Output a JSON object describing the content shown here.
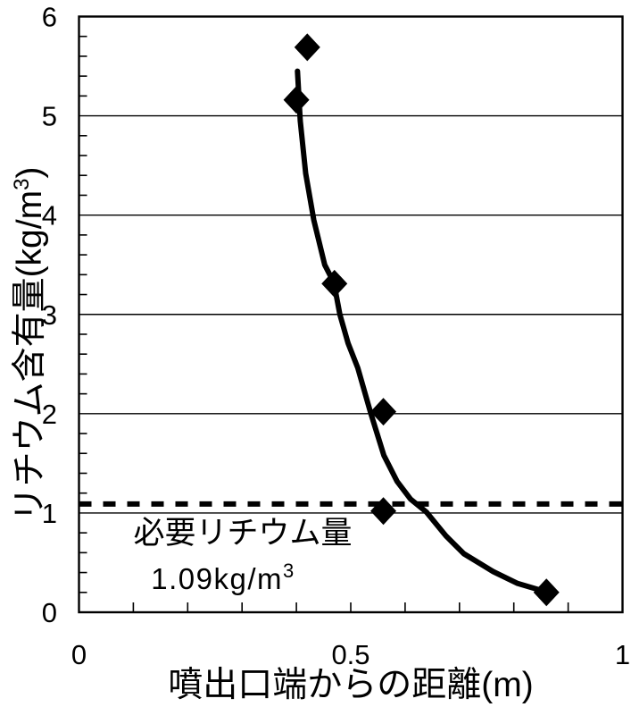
{
  "colors": {
    "foreground": "#000000",
    "background": "#ffffff"
  },
  "chart_data": {
    "type": "scatter",
    "xlabel": "噴出口端からの距離(m)",
    "ylabel": "リチウム含有量(kg/m3)",
    "ylabel_parts": {
      "main": "リチウム含有量(kg/m",
      "sup": "3",
      "close": ")"
    },
    "xlim": [
      0,
      1
    ],
    "ylim": [
      0,
      6
    ],
    "x_tick_values": [
      0,
      0.5,
      1
    ],
    "x_tick_labels": [
      "0",
      "0.5",
      "1"
    ],
    "x_minor_step": 0.1,
    "y_tick_values": [
      0,
      1,
      2,
      3,
      4,
      5,
      6
    ],
    "y_tick_labels": [
      "0",
      "1",
      "2",
      "3",
      "4",
      "5",
      "6"
    ],
    "y_minor_step": 0.2,
    "grid": "horizontal-major-only",
    "legend": "none",
    "series": [
      {
        "name": "lithium-content-points",
        "type": "scatter",
        "marker": "diamond",
        "color": "#000000",
        "points": [
          [
            0.42,
            5.69
          ],
          [
            0.4,
            5.16
          ],
          [
            0.47,
            3.31
          ],
          [
            0.56,
            2.02
          ],
          [
            0.56,
            1.02
          ],
          [
            0.86,
            0.2
          ]
        ]
      },
      {
        "name": "fit-curve",
        "type": "line",
        "color": "#000000",
        "points": [
          [
            0.402,
            5.45
          ],
          [
            0.407,
            4.95
          ],
          [
            0.417,
            4.42
          ],
          [
            0.432,
            3.95
          ],
          [
            0.452,
            3.5
          ],
          [
            0.469,
            3.32
          ],
          [
            0.48,
            3.0
          ],
          [
            0.495,
            2.71
          ],
          [
            0.513,
            2.46
          ],
          [
            0.536,
            2.02
          ],
          [
            0.561,
            1.58
          ],
          [
            0.585,
            1.32
          ],
          [
            0.61,
            1.14
          ],
          [
            0.639,
            1.01
          ],
          [
            0.675,
            0.77
          ],
          [
            0.708,
            0.59
          ],
          [
            0.762,
            0.41
          ],
          [
            0.807,
            0.29
          ],
          [
            0.857,
            0.21
          ]
        ]
      },
      {
        "name": "required-lithium-threshold",
        "type": "dashed-hline",
        "color": "#000000",
        "y": 1.09
      }
    ],
    "annotation": {
      "line1": "必要リチウム量",
      "value_main": "1.09kg/m",
      "value_sup": "3"
    }
  }
}
